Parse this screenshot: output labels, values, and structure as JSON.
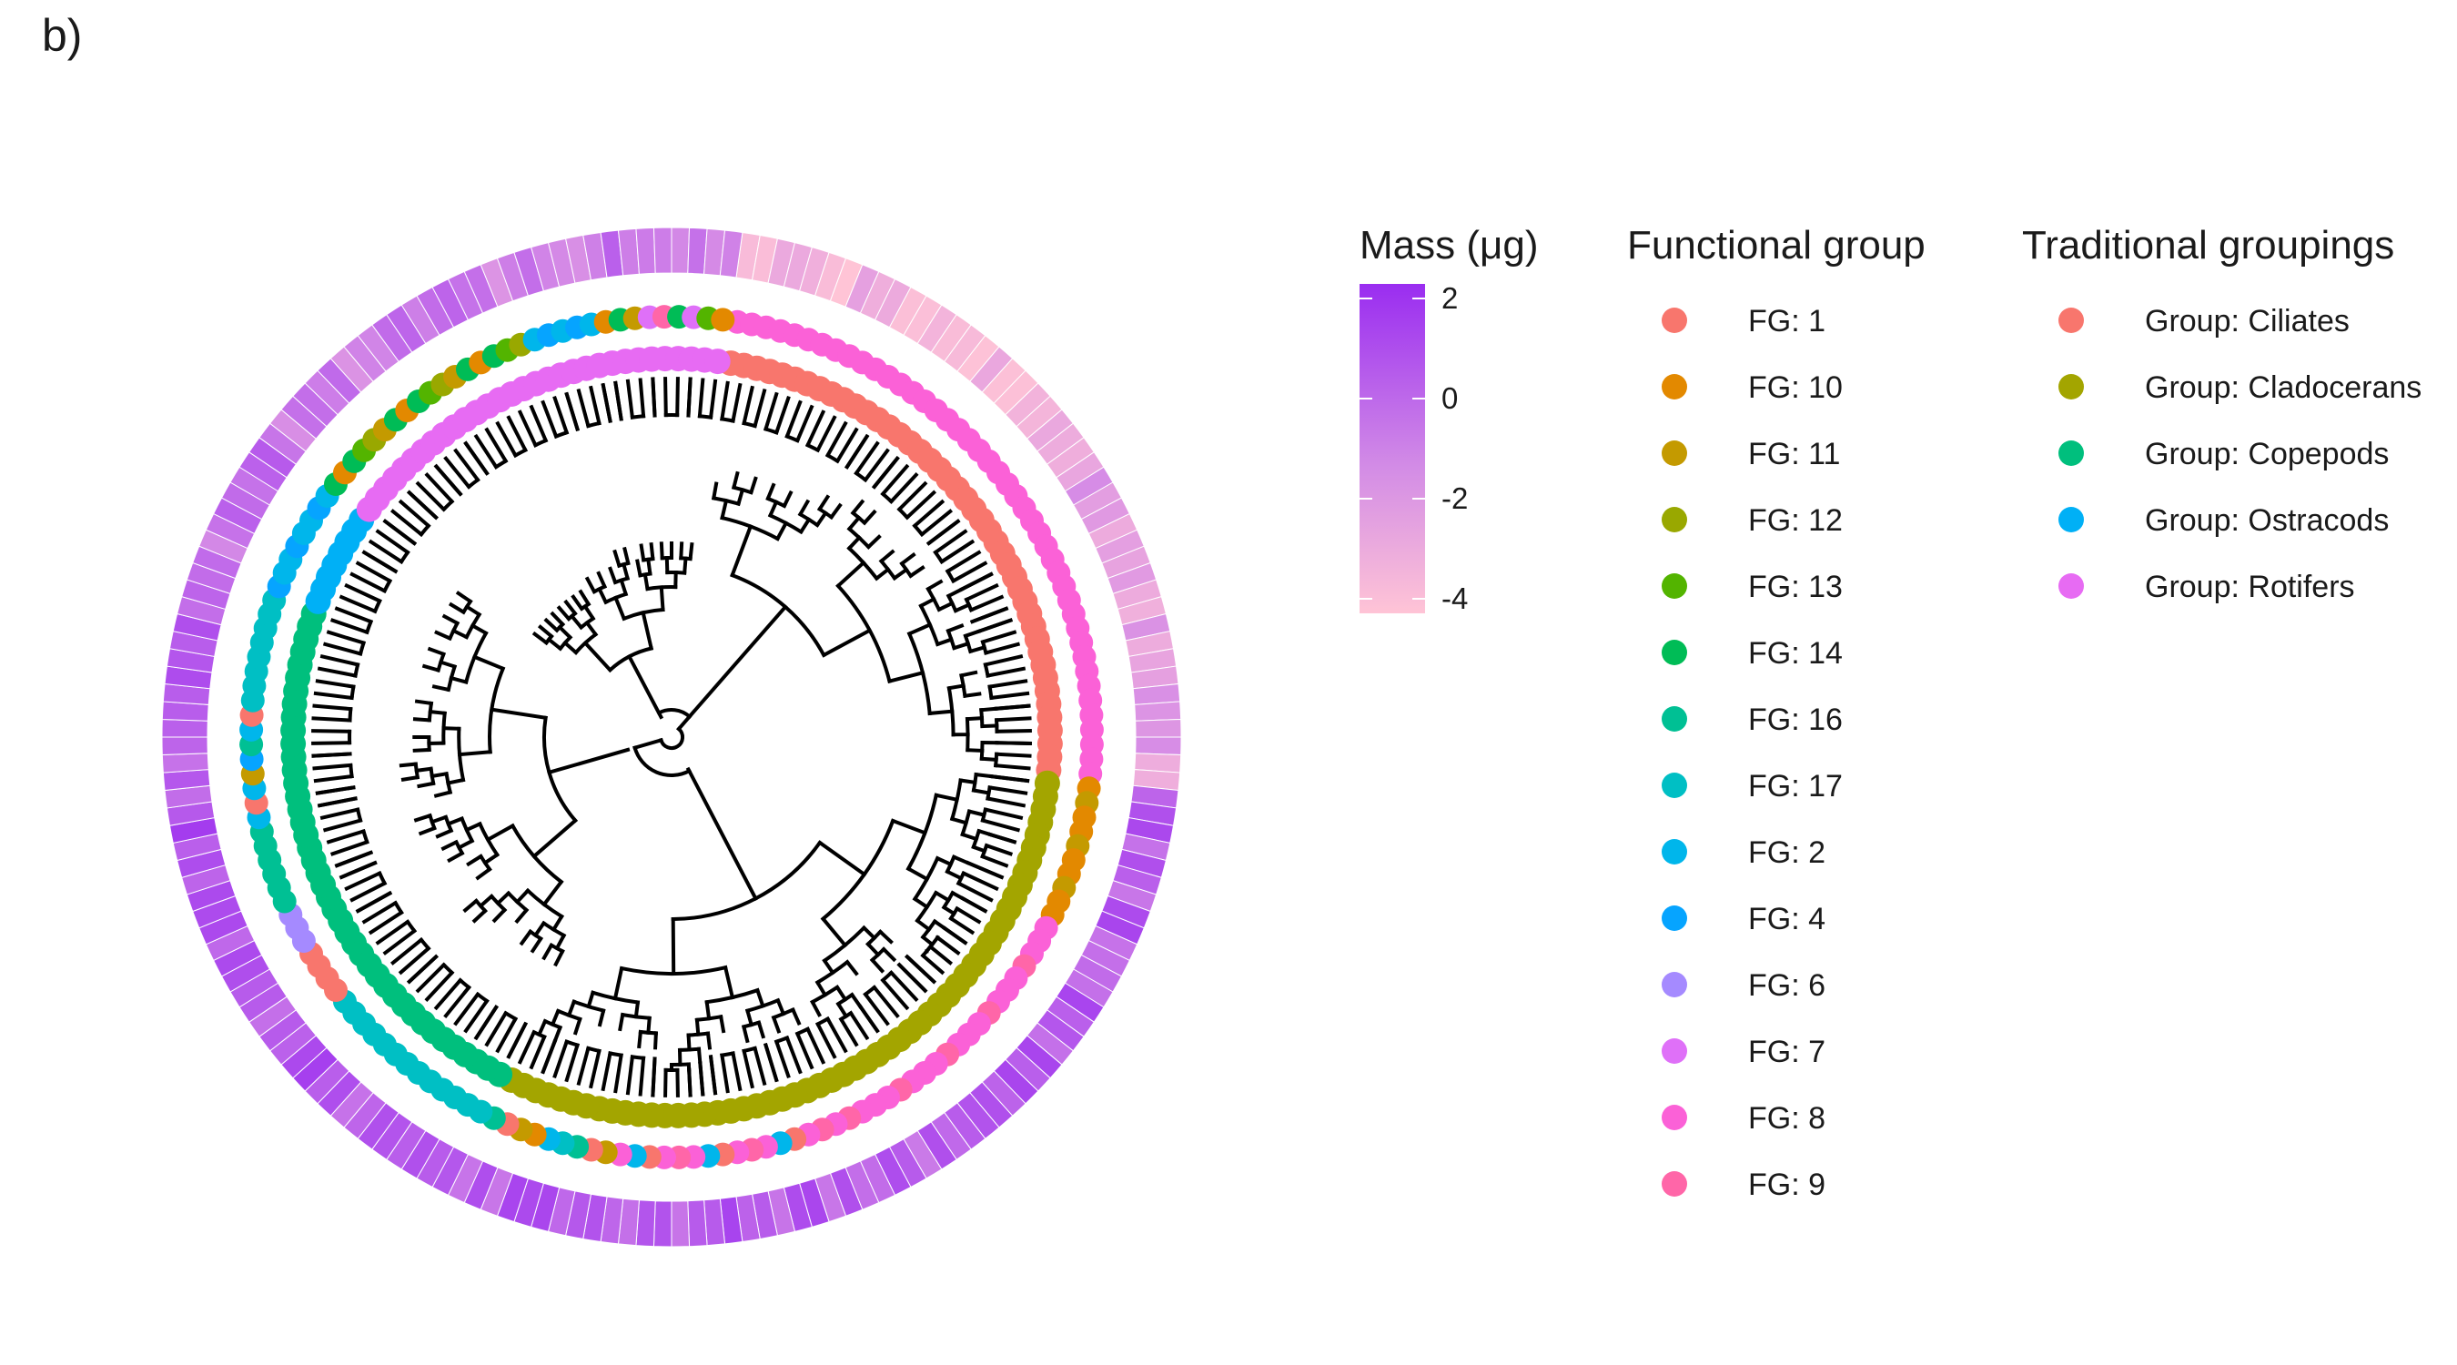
{
  "panel_label": "b)",
  "legends": {
    "mass": {
      "title": "Mass (μg)",
      "ticks": [
        "2",
        "0",
        "-2",
        "-4"
      ],
      "range": [
        -4.3,
        2.3
      ],
      "color_low": "#ffc4d6",
      "color_high": "#9a2df0"
    },
    "functional_group": {
      "title": "Functional group",
      "items": [
        {
          "label": "FG: 1",
          "color": "#f8766d"
        },
        {
          "label": "FG: 10",
          "color": "#e38900"
        },
        {
          "label": "FG: 11",
          "color": "#c49a00"
        },
        {
          "label": "FG: 12",
          "color": "#99a800"
        },
        {
          "label": "FG: 13",
          "color": "#53b400"
        },
        {
          "label": "FG: 14",
          "color": "#00bc56"
        },
        {
          "label": "FG: 16",
          "color": "#00c094"
        },
        {
          "label": "FG: 17",
          "color": "#00bfc4"
        },
        {
          "label": "FG: 2",
          "color": "#00b6eb"
        },
        {
          "label": "FG: 4",
          "color": "#06a4ff"
        },
        {
          "label": "FG: 6",
          "color": "#a58aff"
        },
        {
          "label": "FG: 7",
          "color": "#df70f8"
        },
        {
          "label": "FG: 8",
          "color": "#fb61d7"
        },
        {
          "label": "FG: 9",
          "color": "#ff66a8"
        }
      ]
    },
    "traditional": {
      "title": "Traditional groupings",
      "items": [
        {
          "label": "Group: Ciliates",
          "color": "#f8766d"
        },
        {
          "label": "Group: Cladocerans",
          "color": "#a3a500"
        },
        {
          "label": "Group: Copepods",
          "color": "#00bf7d"
        },
        {
          "label": "Group: Ostracods",
          "color": "#00b0f6"
        },
        {
          "label": "Group: Rotifers",
          "color": "#e76bf3"
        }
      ]
    }
  }
}
